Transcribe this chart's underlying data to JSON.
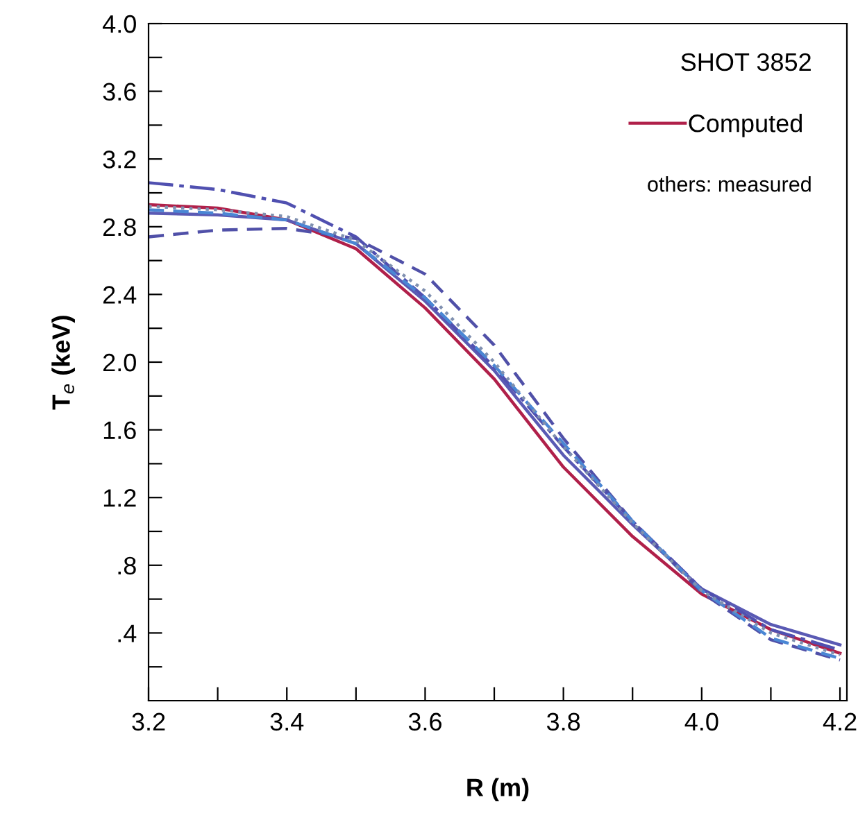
{
  "chart_data": {
    "type": "line",
    "xlabel": "R (m)",
    "ylabel": "T$_{e}$ (keV)",
    "x": [
      3.2,
      3.3,
      3.4,
      3.5,
      3.6,
      3.7,
      3.8,
      3.9,
      4.0,
      4.1,
      4.2
    ],
    "series": [
      {
        "name": "Computed",
        "color": "#b0204a",
        "line_style": "solid",
        "values": [
          2.93,
          2.91,
          2.84,
          2.67,
          2.32,
          1.9,
          1.38,
          0.97,
          0.63,
          0.42,
          0.28
        ]
      },
      {
        "color": "#5a5ab4",
        "line_style": "solid",
        "values": [
          2.88,
          2.87,
          2.84,
          2.7,
          2.36,
          1.95,
          1.45,
          1.04,
          0.66,
          0.45,
          0.33
        ]
      },
      {
        "color": "#5050b0",
        "line_style": "dashdot",
        "values": [
          3.06,
          3.02,
          2.94,
          2.74,
          2.38,
          1.97,
          1.5,
          1.06,
          0.66,
          0.42,
          0.3
        ]
      },
      {
        "color": "#5050a8",
        "line_style": "dashed",
        "values": [
          2.74,
          2.78,
          2.79,
          2.73,
          2.52,
          2.1,
          1.55,
          1.06,
          0.64,
          0.36,
          0.24
        ]
      },
      {
        "color": "#4a86d4",
        "line_style": "dashed",
        "values": [
          2.9,
          2.88,
          2.84,
          2.7,
          2.38,
          1.98,
          1.52,
          1.06,
          0.65,
          0.37,
          0.25
        ]
      },
      {
        "color": "#8090b0",
        "line_style": "dotted",
        "values": [
          2.92,
          2.9,
          2.86,
          2.72,
          2.42,
          2.0,
          1.5,
          1.05,
          0.65,
          0.4,
          0.27
        ]
      }
    ],
    "xlim": [
      3.2,
      4.21
    ],
    "ylim": [
      0,
      4.0
    ],
    "xticks": [
      3.2,
      {
        "value": 3.3,
        "label": null
      },
      3.4,
      {
        "value": 3.5,
        "label": null
      },
      3.6,
      {
        "value": 3.7,
        "label": null
      },
      3.8,
      {
        "value": 3.9,
        "label": null
      },
      {
        "value": 4.0,
        "label": "4.0"
      },
      {
        "value": 4.1,
        "label": null
      },
      4.2
    ],
    "yticks": [
      {
        "value": 0.2,
        "label": null
      },
      {
        "value": 0.4,
        "label": ".4"
      },
      {
        "value": 0.6,
        "label": null
      },
      {
        "value": 0.8,
        "label": ".8"
      },
      {
        "value": 1.0,
        "label": null
      },
      1.2,
      {
        "value": 1.4,
        "label": null
      },
      1.6,
      {
        "value": 1.8,
        "label": null
      },
      {
        "value": 2.0,
        "label": "2.0"
      },
      {
        "value": 2.2,
        "label": null
      },
      2.4,
      {
        "value": 2.6,
        "label": null
      },
      2.8,
      {
        "value": 3.0,
        "label": null
      },
      3.2,
      {
        "value": 3.4,
        "label": null
      },
      3.6,
      {
        "value": 3.8,
        "label": null
      },
      {
        "value": 4.0,
        "label": "4.0"
      }
    ],
    "annotations": [
      "SHOT 3852",
      "others: measured"
    ],
    "legend": "top right",
    "grid": false
  }
}
